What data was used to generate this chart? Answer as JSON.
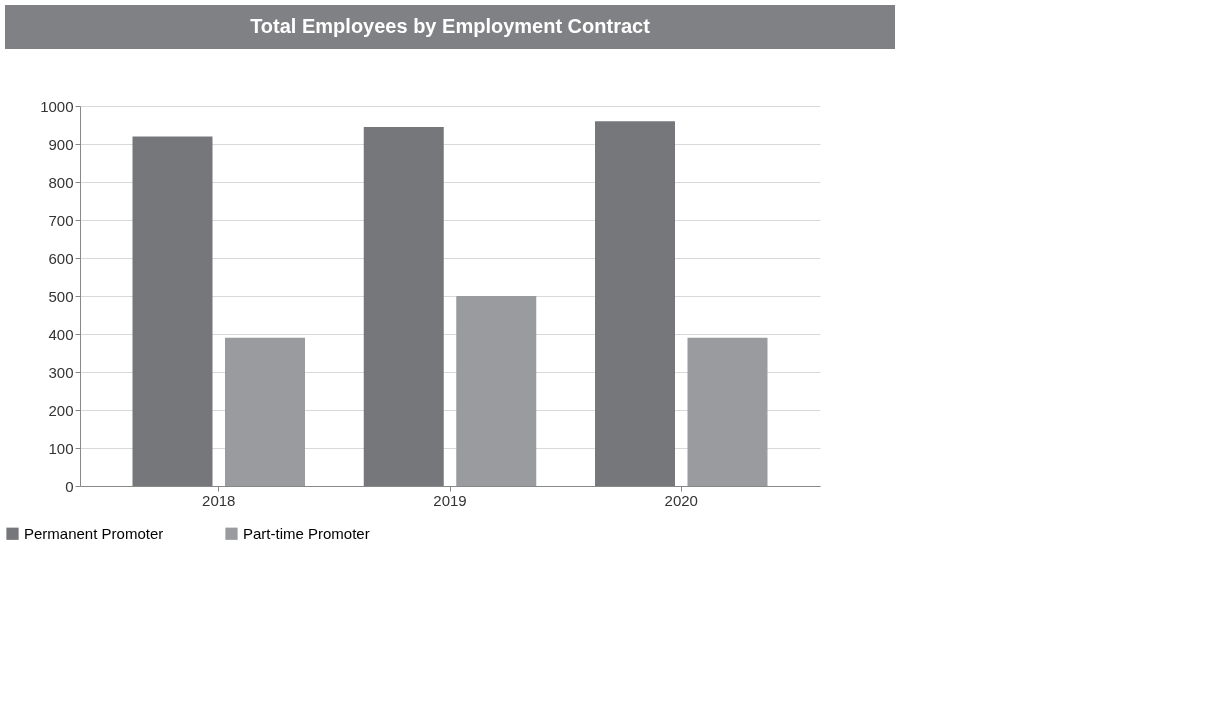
{
  "chart_data": {
    "type": "bar",
    "title": "Total Employees by Employment Contract",
    "categories": [
      "2018",
      "2019",
      "2020"
    ],
    "series": [
      {
        "name": "Permanent Promoter",
        "color": "#76777b",
        "values": [
          920,
          945,
          960
        ]
      },
      {
        "name": "Part-time Promoter",
        "color": "#9a9b9f",
        "values": [
          390,
          500,
          390
        ]
      }
    ],
    "ylim": [
      0,
      1000
    ],
    "yticks": [
      0,
      100,
      200,
      300,
      400,
      500,
      600,
      700,
      800,
      900,
      1000
    ],
    "grid": "y",
    "legend": "bottom"
  }
}
